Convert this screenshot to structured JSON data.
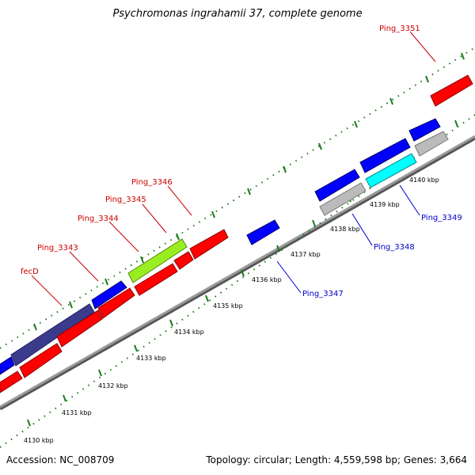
{
  "title": "Psychromonas ingrahamii 37, complete genome",
  "accession": "Accession: NC_008709",
  "stats": "Topology: circular; Length: 4,559,598 bp; Genes: 3,664",
  "colors": {
    "forward_cds": "#0000ff",
    "reverse_cds": "#ff0000",
    "other": "#bbbbbb",
    "backbone": "#888888",
    "ticks": "#1a7a1a",
    "label_forward": "#0000cc",
    "label_reverse": "#cc0000"
  },
  "ticks": [
    {
      "label": "4130 kbp",
      "pos": 4130
    },
    {
      "label": "4131 kbp",
      "pos": 4131
    },
    {
      "label": "4132 kbp",
      "pos": 4132
    },
    {
      "label": "4133 kbp",
      "pos": 4133
    },
    {
      "label": "4134 kbp",
      "pos": 4134
    },
    {
      "label": "4135 kbp",
      "pos": 4135
    },
    {
      "label": "4136 kbp",
      "pos": 4136
    },
    {
      "label": "4137 kbp",
      "pos": 4137
    },
    {
      "label": "4138 kbp",
      "pos": 4138
    },
    {
      "label": "4139 kbp",
      "pos": 4139
    },
    {
      "label": "4140 kbp",
      "pos": 4140
    }
  ],
  "gene_labels": [
    {
      "name": "fecD",
      "strand": "reverse"
    },
    {
      "name": "Ping_3343",
      "strand": "reverse"
    },
    {
      "name": "Ping_3344",
      "strand": "reverse"
    },
    {
      "name": "Ping_3345",
      "strand": "reverse"
    },
    {
      "name": "Ping_3346",
      "strand": "reverse"
    },
    {
      "name": "Ping_3351",
      "strand": "reverse"
    },
    {
      "name": "Ping_3347",
      "strand": "forward"
    },
    {
      "name": "Ping_3348",
      "strand": "forward"
    },
    {
      "name": "Ping_3349",
      "strand": "forward"
    }
  ]
}
